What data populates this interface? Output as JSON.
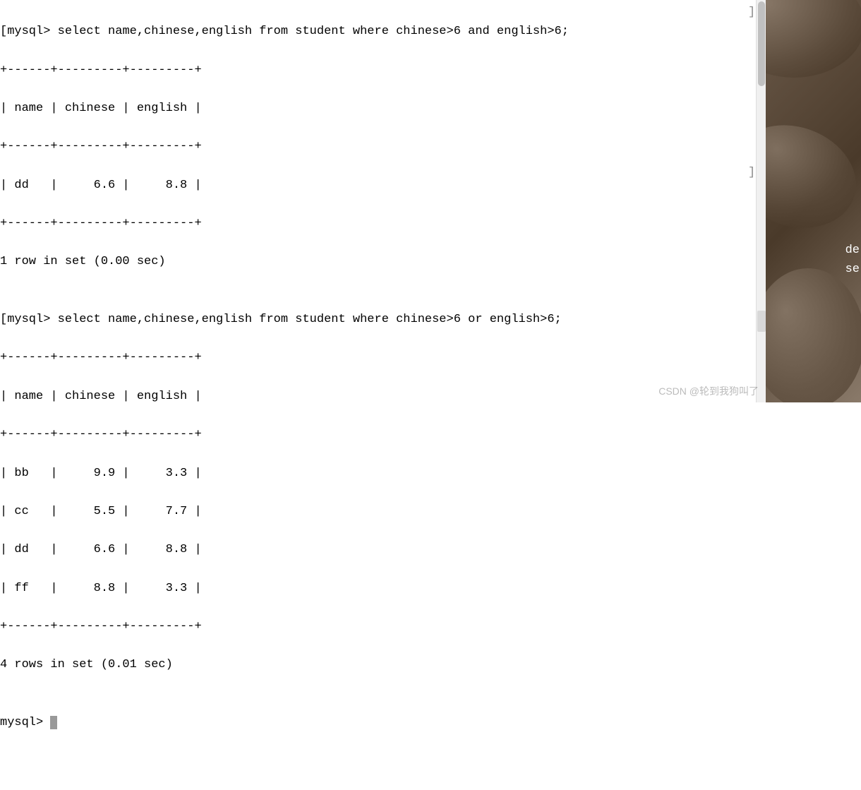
{
  "terminal": {
    "prompt_open": "[",
    "prompt_label": "mysql>",
    "bracket_close": "]",
    "query1": {
      "sql": " select name,chinese,english from student where chinese>6 and english>6;",
      "border_top": "+------+---------+---------+",
      "header": "| name | chinese | english |",
      "border_mid": "+------+---------+---------+",
      "rows": [
        "| dd   |     6.6 |     8.8 |"
      ],
      "border_bot": "+------+---------+---------+",
      "status": "1 row in set (0.00 sec)"
    },
    "blank": "",
    "query2": {
      "sql": " select name,chinese,english from student where chinese>6 or english>6;",
      "border_top": "+------+---------+---------+",
      "header": "| name | chinese | english |",
      "border_mid": "+------+---------+---------+",
      "rows": [
        "| bb   |     9.9 |     3.3 |",
        "| cc   |     5.5 |     7.7 |",
        "| dd   |     6.6 |     8.8 |",
        "| ff   |     8.8 |     3.3 |"
      ],
      "border_bot": "+------+---------+---------+",
      "status": "4 rows in set (0.01 sec)"
    },
    "final_prompt": "mysql> "
  },
  "sidebar": {
    "text1": "de",
    "text2": "se"
  },
  "watermark": "CSDN @轮到我狗叫了"
}
